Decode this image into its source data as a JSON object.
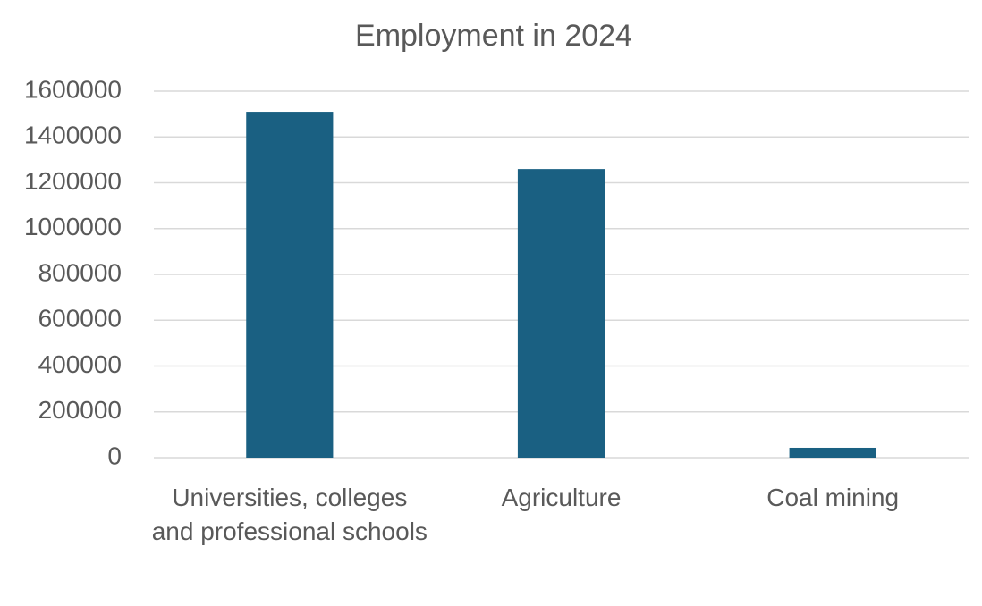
{
  "chart_data": {
    "type": "bar",
    "title": "Employment in 2024",
    "categories": [
      "Universities, colleges and professional schools",
      "Agriculture",
      "Coal mining"
    ],
    "values": [
      1510000,
      1260000,
      43000
    ],
    "color": "#1a6082",
    "ylim": [
      0,
      1600000
    ],
    "yticks": [
      0,
      200000,
      400000,
      600000,
      800000,
      1000000,
      1200000,
      1400000,
      1600000
    ],
    "grid": true
  }
}
